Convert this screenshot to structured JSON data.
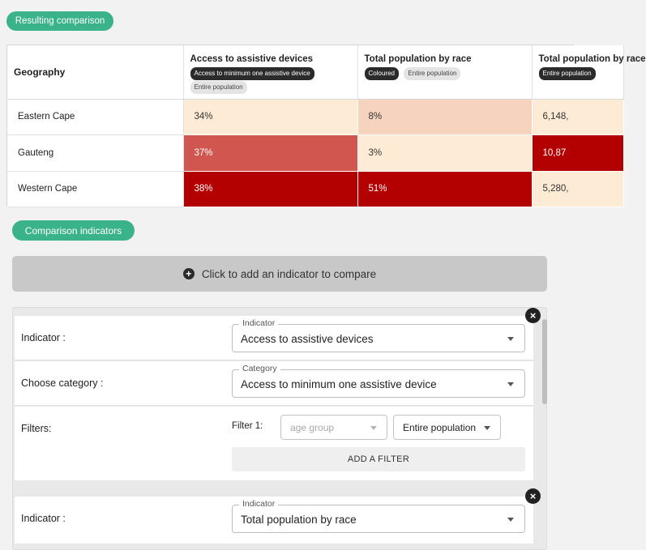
{
  "sections": {
    "result_title": "Resulting comparison",
    "indicators_title": "Comparison indicators"
  },
  "table": {
    "geo_header": "Geography",
    "columns": [
      {
        "title": "Access to assistive devices",
        "tags": [
          {
            "text": "Access to minimum one assistive device",
            "style": "dark"
          },
          {
            "text": "Entire population",
            "style": "light"
          }
        ]
      },
      {
        "title": "Total population by race",
        "tags": [
          {
            "text": "Coloured",
            "style": "dark"
          },
          {
            "text": "Entire population",
            "style": "light"
          }
        ]
      },
      {
        "title": "Total population by race",
        "tags": [
          {
            "text": "Entire population",
            "style": "dark"
          }
        ]
      }
    ],
    "rows": [
      {
        "geo": "Eastern Cape",
        "cells": [
          {
            "v": "34%",
            "bg": "#fdebd5",
            "fg": "#333333"
          },
          {
            "v": "8%",
            "bg": "#f6d3bf",
            "fg": "#333333"
          },
          {
            "v": "6,148,",
            "bg": "#fdebd5",
            "fg": "#333333"
          }
        ]
      },
      {
        "geo": "Gauteng",
        "cells": [
          {
            "v": "37%",
            "bg": "#d25650",
            "fg": "#ffffff"
          },
          {
            "v": "3%",
            "bg": "#fdebd5",
            "fg": "#333333"
          },
          {
            "v": "10,87",
            "bg": "#b30000",
            "fg": "#ffffff"
          }
        ]
      },
      {
        "geo": "Western Cape",
        "cells": [
          {
            "v": "38%",
            "bg": "#b30000",
            "fg": "#ffffff"
          },
          {
            "v": "51%",
            "bg": "#b30000",
            "fg": "#ffffff"
          },
          {
            "v": "5,280,",
            "bg": "#fdebd5",
            "fg": "#333333"
          }
        ]
      }
    ]
  },
  "add_indicator": {
    "icon": "plus-circle-icon",
    "label": "Click to add an indicator to compare"
  },
  "indicator1": {
    "indicator_label": "Indicator :",
    "indicator_legend": "Indicator",
    "indicator_value": "Access to assistive devices",
    "category_label": "Choose category :",
    "category_legend": "Category",
    "category_value": "Access to minimum one assistive device",
    "filters_label": "Filters:",
    "filter1_label": "Filter 1:",
    "filter1_placeholder": "age group",
    "filter1_value": "Entire population",
    "add_filter": "ADD A FILTER",
    "close_icon": "close-icon"
  },
  "indicator2": {
    "indicator_label": "Indicator :",
    "indicator_legend": "Indicator",
    "indicator_value": "Total population by race",
    "close_icon": "close-icon"
  },
  "colors": {
    "accent": "#3bb38a",
    "high": "#b30000",
    "mid": "#d25650",
    "low": "#fdebd5"
  }
}
